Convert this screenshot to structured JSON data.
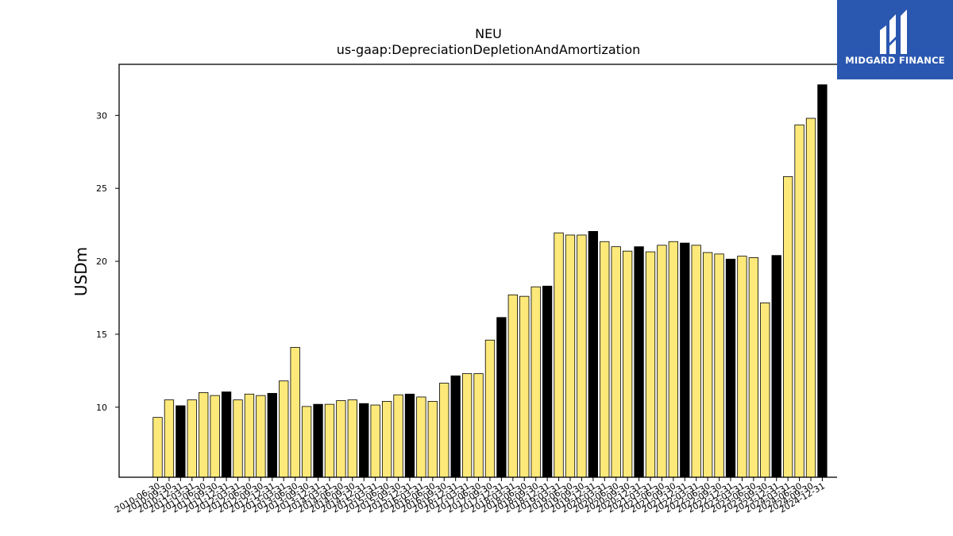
{
  "brand": {
    "name": "MIDGARD FINANCE",
    "bg": "#2a57b0"
  },
  "chart_data": {
    "type": "bar",
    "title": "NEU",
    "subtitle": "us-gaap:DepreciationDepletionAndAmortization",
    "xlabel": "",
    "ylabel": "USDm",
    "ylim": [
      5.2,
      33.5
    ],
    "yticks": [
      10,
      15,
      20,
      25,
      30
    ],
    "grid": false,
    "colors": {
      "quarter": "#fde97a",
      "year_end": "#000000",
      "edge": "#000000"
    },
    "categories": [
      "2010-06-30",
      "2010-09-30",
      "2010-12-31",
      "2011-03-31",
      "2011-06-30",
      "2011-09-30",
      "2011-12-31",
      "2012-03-31",
      "2012-06-30",
      "2012-09-30",
      "2012-12-31",
      "2013-03-31",
      "2013-06-30",
      "2013-09-30",
      "2013-12-31",
      "2014-03-31",
      "2014-06-30",
      "2014-09-30",
      "2014-12-31",
      "2015-03-31",
      "2015-06-30",
      "2015-09-30",
      "2015-12-31",
      "2016-03-31",
      "2016-06-30",
      "2016-09-30",
      "2016-12-31",
      "2017-03-31",
      "2017-06-30",
      "2017-09-30",
      "2017-12-31",
      "2018-03-31",
      "2018-06-30",
      "2018-09-30",
      "2018-12-31",
      "2019-03-31",
      "2019-06-30",
      "2019-09-30",
      "2019-12-31",
      "2020-03-31",
      "2020-06-30",
      "2020-09-30",
      "2020-12-31",
      "2021-03-31",
      "2021-06-30",
      "2021-09-30",
      "2021-12-31",
      "2022-03-31",
      "2022-06-30",
      "2022-09-30",
      "2022-12-31",
      "2023-03-31",
      "2023-06-30",
      "2023-09-30",
      "2023-12-31",
      "2024-03-31",
      "2024-06-30",
      "2024-09-30",
      "2024-12-31"
    ],
    "values": [
      9.3,
      10.5,
      10.1,
      10.5,
      11.0,
      10.8,
      11.05,
      10.5,
      10.9,
      10.8,
      10.95,
      11.8,
      14.1,
      10.05,
      10.2,
      10.2,
      10.45,
      10.5,
      10.25,
      10.15,
      10.4,
      10.85,
      10.9,
      10.7,
      10.4,
      11.65,
      12.15,
      12.3,
      12.3,
      14.6,
      16.15,
      17.7,
      17.6,
      18.25,
      18.3,
      21.95,
      21.8,
      21.8,
      22.05,
      21.35,
      21.0,
      20.7,
      21.0,
      20.65,
      21.1,
      21.35,
      21.25,
      21.1,
      20.6,
      20.5,
      20.15,
      20.35,
      20.25,
      17.15,
      20.4,
      25.8,
      29.35,
      29.8,
      32.1
    ],
    "year_end": [
      false,
      false,
      true,
      false,
      false,
      false,
      true,
      false,
      false,
      false,
      true,
      false,
      false,
      false,
      true,
      false,
      false,
      false,
      true,
      false,
      false,
      false,
      true,
      false,
      false,
      false,
      true,
      false,
      false,
      false,
      true,
      false,
      false,
      false,
      true,
      false,
      false,
      false,
      true,
      false,
      false,
      false,
      true,
      false,
      false,
      false,
      true,
      false,
      false,
      false,
      true,
      false,
      false,
      false,
      true,
      false,
      false,
      false,
      true
    ]
  }
}
